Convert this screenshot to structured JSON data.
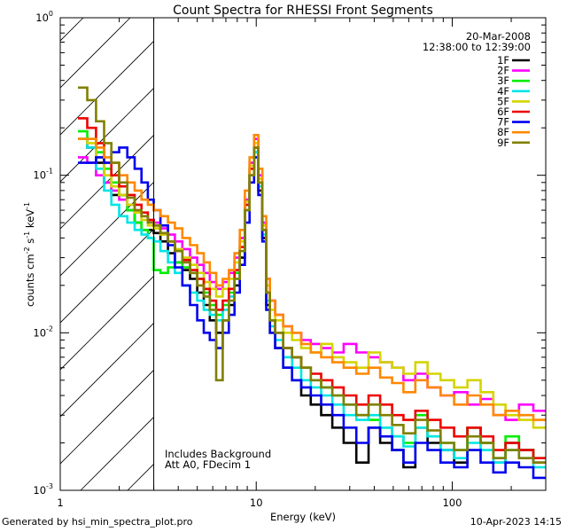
{
  "chart_data": {
    "type": "line",
    "step": true,
    "title": "Count Spectra for RHESSI Front Segments",
    "xlabel": "Energy (keV)",
    "ylabel_parts": [
      "counts cm",
      "-2",
      " s",
      "-1",
      " keV",
      "-1"
    ],
    "xscale": "log",
    "yscale": "log",
    "xlim": [
      1,
      300
    ],
    "ylim": [
      0.001,
      1
    ],
    "x_ticks": [
      {
        "value": 1,
        "label": "1"
      },
      {
        "value": 10,
        "label": "10"
      },
      {
        "value": 100,
        "label": "100"
      }
    ],
    "y_ticks": [
      {
        "value": 0.001,
        "mant": "10",
        "exp": "-3"
      },
      {
        "value": 0.01,
        "mant": "10",
        "exp": "-2"
      },
      {
        "value": 0.1,
        "mant": "10",
        "exp": "-1"
      },
      {
        "value": 1,
        "mant": "10",
        "exp": "0"
      }
    ],
    "excluded_range": [
      1,
      3
    ],
    "date": "20-Mar-2008",
    "time_range": "12:38:00 to 12:39:00",
    "annotations": [
      "Includes Background",
      "Att A0, FDecim 1"
    ],
    "energies": [
      1.3,
      1.45,
      1.6,
      1.75,
      1.9,
      2.1,
      2.3,
      2.5,
      2.7,
      2.9,
      3.1,
      3.4,
      3.7,
      4.0,
      4.4,
      4.8,
      5.2,
      5.6,
      6.0,
      6.5,
      7.0,
      7.5,
      8.0,
      8.5,
      9.0,
      9.5,
      10.0,
      10.5,
      11.0,
      11.5,
      12.0,
      13.0,
      14.5,
      16.0,
      18.0,
      20.0,
      23.0,
      26.0,
      30.0,
      35.0,
      40.0,
      46.0,
      53.0,
      60.0,
      70.0,
      80.0,
      95.0,
      110.0,
      130.0,
      150.0,
      175.0,
      200.0,
      240.0,
      280.0
    ],
    "series": [
      {
        "name": "1F",
        "color": "#000000",
        "values": [
          0.17,
          0.15,
          0.12,
          0.09,
          0.075,
          0.075,
          0.06,
          0.05,
          0.045,
          0.045,
          0.043,
          0.038,
          0.032,
          0.028,
          0.025,
          0.022,
          0.018,
          0.015,
          0.012,
          0.01,
          0.012,
          0.015,
          0.02,
          0.03,
          0.06,
          0.1,
          0.14,
          0.08,
          0.04,
          0.015,
          0.01,
          0.008,
          0.006,
          0.005,
          0.004,
          0.0035,
          0.003,
          0.0025,
          0.002,
          0.0015,
          0.0025,
          0.002,
          0.0018,
          0.0014,
          0.0025,
          0.002,
          0.0018,
          0.0015,
          0.0025,
          0.002,
          0.0015,
          0.002,
          0.0018,
          0.0015
        ]
      },
      {
        "name": "2F",
        "color": "#ff00ff",
        "values": [
          0.13,
          0.12,
          0.1,
          0.09,
          0.08,
          0.07,
          0.065,
          0.06,
          0.055,
          0.052,
          0.05,
          0.046,
          0.042,
          0.038,
          0.034,
          0.03,
          0.027,
          0.024,
          0.021,
          0.019,
          0.021,
          0.024,
          0.03,
          0.04,
          0.07,
          0.12,
          0.17,
          0.1,
          0.05,
          0.022,
          0.016,
          0.013,
          0.011,
          0.01,
          0.009,
          0.0085,
          0.008,
          0.0075,
          0.0085,
          0.0075,
          0.007,
          0.0065,
          0.006,
          0.005,
          0.0055,
          0.0045,
          0.004,
          0.0042,
          0.0035,
          0.0038,
          0.003,
          0.0028,
          0.0035,
          0.0032
        ]
      },
      {
        "name": "3F",
        "color": "#00ee00",
        "values": [
          0.19,
          0.17,
          0.14,
          0.11,
          0.09,
          0.075,
          0.06,
          0.05,
          0.045,
          0.04,
          0.025,
          0.024,
          0.026,
          0.028,
          0.026,
          0.024,
          0.022,
          0.018,
          0.015,
          0.013,
          0.015,
          0.018,
          0.024,
          0.035,
          0.065,
          0.11,
          0.15,
          0.09,
          0.045,
          0.018,
          0.012,
          0.01,
          0.008,
          0.007,
          0.006,
          0.005,
          0.0045,
          0.004,
          0.0035,
          0.003,
          0.0028,
          0.0025,
          0.0022,
          0.002,
          0.003,
          0.0022,
          0.002,
          0.0018,
          0.0025,
          0.002,
          0.0016,
          0.0022,
          0.0018,
          0.0016
        ]
      },
      {
        "name": "4F",
        "color": "#00e5e5",
        "values": [
          0.17,
          0.15,
          0.11,
          0.08,
          0.065,
          0.055,
          0.05,
          0.045,
          0.042,
          0.04,
          0.038,
          0.033,
          0.028,
          0.024,
          0.02,
          0.018,
          0.016,
          0.014,
          0.013,
          0.012,
          0.014,
          0.017,
          0.022,
          0.033,
          0.06,
          0.1,
          0.14,
          0.085,
          0.042,
          0.016,
          0.011,
          0.009,
          0.007,
          0.006,
          0.005,
          0.0045,
          0.004,
          0.0035,
          0.003,
          0.0028,
          0.003,
          0.0025,
          0.0022,
          0.0019,
          0.0025,
          0.0022,
          0.0018,
          0.0016,
          0.002,
          0.0018,
          0.0015,
          0.0018,
          0.0016,
          0.0014
        ]
      },
      {
        "name": "5F",
        "color": "#d4d400",
        "values": [
          0.17,
          0.16,
          0.13,
          0.1,
          0.085,
          0.075,
          0.065,
          0.058,
          0.052,
          0.048,
          0.046,
          0.042,
          0.038,
          0.034,
          0.03,
          0.027,
          0.024,
          0.021,
          0.019,
          0.017,
          0.019,
          0.022,
          0.028,
          0.038,
          0.068,
          0.115,
          0.16,
          0.095,
          0.048,
          0.02,
          0.014,
          0.012,
          0.01,
          0.009,
          0.008,
          0.0075,
          0.0085,
          0.007,
          0.0065,
          0.006,
          0.0075,
          0.0065,
          0.006,
          0.0055,
          0.0065,
          0.0055,
          0.005,
          0.0045,
          0.005,
          0.0042,
          0.0035,
          0.003,
          0.0028,
          0.0025
        ]
      },
      {
        "name": "6F",
        "color": "#ee0000",
        "values": [
          0.23,
          0.2,
          0.16,
          0.12,
          0.1,
          0.085,
          0.075,
          0.065,
          0.058,
          0.052,
          0.048,
          0.043,
          0.038,
          0.033,
          0.029,
          0.025,
          0.022,
          0.019,
          0.016,
          0.014,
          0.016,
          0.019,
          0.025,
          0.035,
          0.065,
          0.11,
          0.15,
          0.09,
          0.045,
          0.018,
          0.012,
          0.01,
          0.008,
          0.007,
          0.006,
          0.0055,
          0.005,
          0.0045,
          0.004,
          0.0035,
          0.004,
          0.0035,
          0.003,
          0.0028,
          0.0032,
          0.0028,
          0.0025,
          0.0022,
          0.0025,
          0.0022,
          0.0018,
          0.002,
          0.0018,
          0.0016
        ]
      },
      {
        "name": "7F",
        "color": "#0000ee",
        "values": [
          0.12,
          0.12,
          0.13,
          0.12,
          0.14,
          0.15,
          0.13,
          0.11,
          0.09,
          0.07,
          0.06,
          0.048,
          0.036,
          0.026,
          0.02,
          0.015,
          0.012,
          0.01,
          0.009,
          0.008,
          0.01,
          0.013,
          0.018,
          0.027,
          0.05,
          0.09,
          0.13,
          0.075,
          0.038,
          0.014,
          0.01,
          0.008,
          0.006,
          0.005,
          0.0045,
          0.004,
          0.0035,
          0.003,
          0.0025,
          0.002,
          0.0025,
          0.0022,
          0.0018,
          0.0015,
          0.002,
          0.0018,
          0.0015,
          0.0014,
          0.0018,
          0.0015,
          0.0013,
          0.0015,
          0.0014,
          0.0012
        ]
      },
      {
        "name": "8F",
        "color": "#ff8800",
        "values": [
          0.17,
          0.17,
          0.15,
          0.13,
          0.12,
          0.1,
          0.09,
          0.08,
          0.07,
          0.065,
          0.06,
          0.055,
          0.05,
          0.046,
          0.04,
          0.036,
          0.032,
          0.028,
          0.024,
          0.02,
          0.022,
          0.025,
          0.032,
          0.045,
          0.08,
          0.13,
          0.18,
          0.11,
          0.055,
          0.022,
          0.016,
          0.013,
          0.011,
          0.01,
          0.0085,
          0.0075,
          0.007,
          0.0065,
          0.006,
          0.0055,
          0.006,
          0.0052,
          0.0048,
          0.0042,
          0.005,
          0.0045,
          0.004,
          0.0035,
          0.004,
          0.0035,
          0.003,
          0.0032,
          0.003,
          0.0028
        ]
      },
      {
        "name": "9F",
        "color": "#808000",
        "values": [
          0.36,
          0.3,
          0.22,
          0.16,
          0.12,
          0.09,
          0.072,
          0.06,
          0.055,
          0.05,
          0.048,
          0.043,
          0.038,
          0.033,
          0.028,
          0.024,
          0.02,
          0.017,
          0.014,
          0.005,
          0.012,
          0.016,
          0.022,
          0.033,
          0.06,
          0.1,
          0.15,
          0.09,
          0.045,
          0.018,
          0.012,
          0.01,
          0.008,
          0.007,
          0.006,
          0.005,
          0.0045,
          0.004,
          0.0035,
          0.003,
          0.0035,
          0.003,
          0.0026,
          0.0023,
          0.0028,
          0.0024,
          0.002,
          0.0018,
          0.0022,
          0.002,
          0.0016,
          0.0018,
          0.0016,
          0.0015
        ]
      }
    ]
  },
  "footer": {
    "generated_by": "Generated by hsi_min_spectra_plot.pro",
    "timestamp": "10-Apr-2023 14:15"
  }
}
